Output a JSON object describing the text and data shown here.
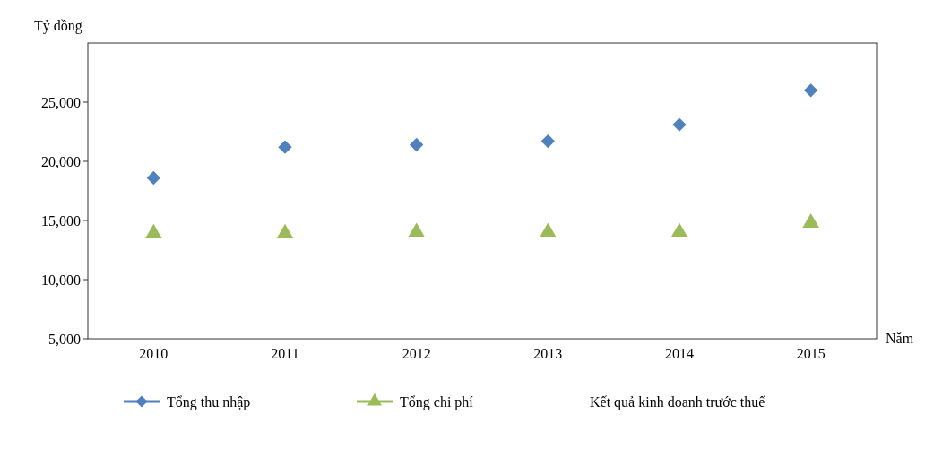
{
  "chart_data": {
    "type": "scatter",
    "xlabel": "Năm",
    "ylabel": "Tỷ đồng",
    "categories": [
      "2010",
      "2011",
      "2012",
      "2013",
      "2014",
      "2015"
    ],
    "series": [
      {
        "name": "Tổng thu nhập",
        "color": "#4f81bd",
        "marker": "diamond",
        "values": [
          18600,
          21200,
          21400,
          21700,
          23100,
          26000
        ]
      },
      {
        "name": "Tổng chi phí",
        "color": "#9bbb59",
        "marker": "triangle",
        "values": [
          13900,
          13900,
          14000,
          14000,
          14000,
          14800
        ]
      }
    ],
    "annotations": [
      "Kết quả kinh doanh trước thuế"
    ],
    "ylim": [
      5000,
      30000
    ],
    "yticks": [
      {
        "value": 5000,
        "label": "5,000"
      },
      {
        "value": 10000,
        "label": "10,000"
      },
      {
        "value": 15000,
        "label": "15,000"
      },
      {
        "value": 20000,
        "label": "20,000"
      },
      {
        "value": 25000,
        "label": "25,000"
      }
    ],
    "grid": false,
    "legend": "bottom"
  }
}
